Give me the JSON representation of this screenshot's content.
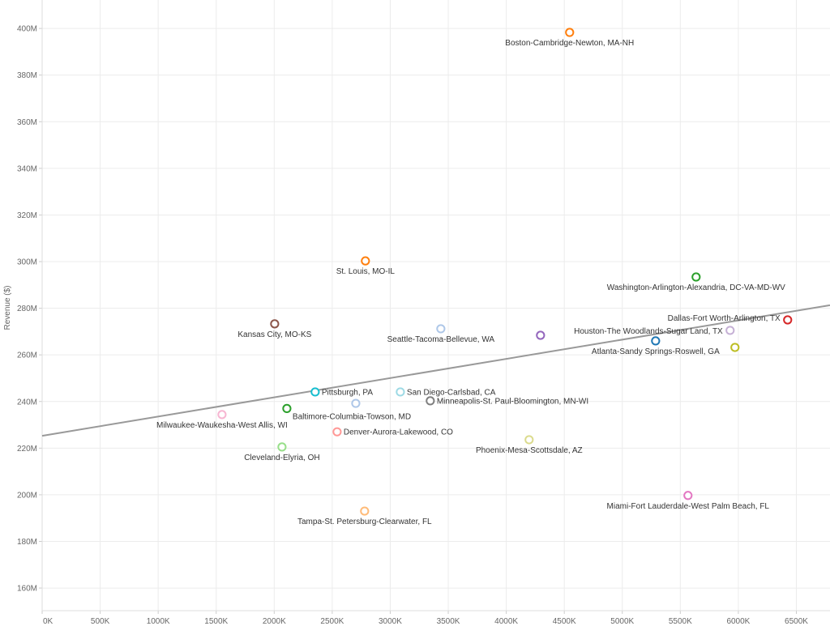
{
  "chart_data": {
    "type": "scatter",
    "title": "",
    "xlabel": "",
    "ylabel": "Revenue ($)",
    "xlim": [
      0,
      6790
    ],
    "ylim": [
      150.3,
      412.2
    ],
    "x_unit": "K",
    "y_unit": "M",
    "grid": true,
    "x_ticks": [
      0,
      500,
      1000,
      1500,
      2000,
      2500,
      3000,
      3500,
      4000,
      4500,
      5000,
      5500,
      6000,
      6500
    ],
    "x_tick_labels": [
      "0K",
      "500K",
      "1000K",
      "1500K",
      "2000K",
      "2500K",
      "3000K",
      "3500K",
      "4000K",
      "4500K",
      "5000K",
      "5500K",
      "6000K",
      "6500K"
    ],
    "y_ticks": [
      160,
      180,
      200,
      220,
      240,
      260,
      280,
      300,
      320,
      340,
      360,
      380,
      400
    ],
    "y_tick_labels": [
      "160M",
      "180M",
      "200M",
      "220M",
      "240M",
      "260M",
      "280M",
      "300M",
      "320M",
      "340M",
      "360M",
      "380M",
      "400M"
    ],
    "trend_line": {
      "color": "#999999",
      "x": [
        0,
        6790
      ],
      "y": [
        225.3,
        281.3
      ]
    },
    "points": [
      {
        "label": "Boston-Cambridge-Newton, MA-NH",
        "x": 4546,
        "y": 398.3,
        "color": "#ff7f0e",
        "label_pos": "below"
      },
      {
        "label": "St. Louis, MO-IL",
        "x": 2786,
        "y": 300.3,
        "color": "#ff7f0e",
        "label_pos": "below"
      },
      {
        "label": "Washington-Arlington-Alexandria, DC-VA-MD-WV",
        "x": 5636,
        "y": 293.4,
        "color": "#2ca02c",
        "label_pos": "below"
      },
      {
        "label": "Kansas City, MO-KS",
        "x": 2004,
        "y": 273.3,
        "color": "#8c564b",
        "label_pos": "below"
      },
      {
        "label": "Seattle-Tacoma-Bellevue, WA",
        "x": 3436,
        "y": 271.2,
        "color": "#aec7e8",
        "label_pos": "below"
      },
      {
        "label": "",
        "x": 4295,
        "y": 268.4,
        "color": "#9467bd",
        "label_pos": "none"
      },
      {
        "label": "Dallas-Fort Worth-Arlington, TX",
        "x": 6425,
        "y": 275.0,
        "color": "#d62728",
        "label_pos": "left-up"
      },
      {
        "label": "Houston-The Woodlands-Sugar Land, TX",
        "x": 5929,
        "y": 270.5,
        "color": "#c5b0d5",
        "label_pos": "left"
      },
      {
        "label": "Atlanta-Sandy Springs-Roswell, GA",
        "x": 5287,
        "y": 266.0,
        "color": "#1f77b4",
        "label_pos": "below"
      },
      {
        "label": "",
        "x": 5971,
        "y": 263.2,
        "color": "#bcbd22",
        "label_pos": "none"
      },
      {
        "label": "Pittsburgh, PA",
        "x": 2353,
        "y": 244.1,
        "color": "#17becf",
        "label_pos": "right"
      },
      {
        "label": "San Diego-Carlsbad, CA",
        "x": 3087,
        "y": 244.1,
        "color": "#9edae5",
        "label_pos": "right"
      },
      {
        "label": "Minneapolis-St. Paul-Bloomington, MN-WI",
        "x": 3345,
        "y": 240.3,
        "color": "#7f7f7f",
        "label_pos": "right"
      },
      {
        "label": "",
        "x": 2703,
        "y": 239.2,
        "color": "#aec7e8",
        "label_pos": "none"
      },
      {
        "label": "Baltimore-Columbia-Towson, MD",
        "x": 2109,
        "y": 237.0,
        "color": "#2ca02c",
        "label_pos": "below-right"
      },
      {
        "label": "Milwaukee-Waukesha-West Allis, WI",
        "x": 1550,
        "y": 234.4,
        "color": "#f7b6d2",
        "label_pos": "below"
      },
      {
        "label": "Denver-Aurora-Lakewood, CO",
        "x": 2542,
        "y": 227.0,
        "color": "#ff9896",
        "label_pos": "right"
      },
      {
        "label": "Phoenix-Mesa-Scottsdale, AZ",
        "x": 4197,
        "y": 223.6,
        "color": "#dbdb8d",
        "label_pos": "below"
      },
      {
        "label": "Cleveland-Elyria, OH",
        "x": 2067,
        "y": 220.5,
        "color": "#98df8a",
        "label_pos": "below"
      },
      {
        "label": "Tampa-St. Petersburg-Clearwater, FL",
        "x": 2779,
        "y": 193.0,
        "color": "#ffbb78",
        "label_pos": "below"
      },
      {
        "label": "Miami-Fort Lauderdale-West Palm Beach, FL",
        "x": 5566,
        "y": 199.7,
        "color": "#e377c2",
        "label_pos": "below"
      }
    ]
  }
}
